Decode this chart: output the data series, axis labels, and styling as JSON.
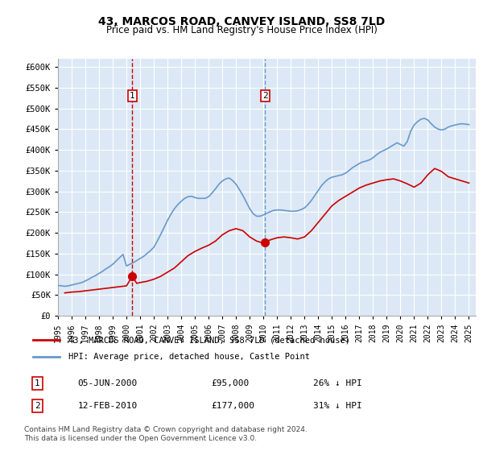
{
  "title": "43, MARCOS ROAD, CANVEY ISLAND, SS8 7LD",
  "subtitle": "Price paid vs. HM Land Registry's House Price Index (HPI)",
  "ylabel_ticks": [
    "£0",
    "£50K",
    "£100K",
    "£150K",
    "£200K",
    "£250K",
    "£300K",
    "£350K",
    "£400K",
    "£450K",
    "£500K",
    "£550K",
    "£600K"
  ],
  "ylim": [
    0,
    620000
  ],
  "xlim_start": 1995.0,
  "xlim_end": 2025.5,
  "marker1_date": 2000.43,
  "marker1_label": "1",
  "marker1_price": 95000,
  "marker1_text": "05-JUN-2000    £95,000    26% ↓ HPI",
  "marker2_date": 2010.12,
  "marker2_label": "2",
  "marker2_price": 177000,
  "marker2_text": "12-FEB-2010    £177,000    31% ↓ HPI",
  "line1_color": "#cc0000",
  "line2_color": "#6699cc",
  "marker_color": "#cc0000",
  "hpi_color": "#6699cc",
  "background_color": "#dce8f5",
  "grid_color": "#ffffff",
  "legend_label1": "43, MARCOS ROAD, CANVEY ISLAND, SS8 7LD (detached house)",
  "legend_label2": "HPI: Average price, detached house, Castle Point",
  "footer": "Contains HM Land Registry data © Crown copyright and database right 2024.\nThis data is licensed under the Open Government Licence v3.0.",
  "hpi_x": [
    1995.0,
    1995.25,
    1995.5,
    1995.75,
    1996.0,
    1996.25,
    1996.5,
    1996.75,
    1997.0,
    1997.25,
    1997.5,
    1997.75,
    1998.0,
    1998.25,
    1998.5,
    1998.75,
    1999.0,
    1999.25,
    1999.5,
    1999.75,
    2000.0,
    2000.25,
    2000.5,
    2000.75,
    2001.0,
    2001.25,
    2001.5,
    2001.75,
    2002.0,
    2002.25,
    2002.5,
    2002.75,
    2003.0,
    2003.25,
    2003.5,
    2003.75,
    2004.0,
    2004.25,
    2004.5,
    2004.75,
    2005.0,
    2005.25,
    2005.5,
    2005.75,
    2006.0,
    2006.25,
    2006.5,
    2006.75,
    2007.0,
    2007.25,
    2007.5,
    2007.75,
    2008.0,
    2008.25,
    2008.5,
    2008.75,
    2009.0,
    2009.25,
    2009.5,
    2009.75,
    2010.0,
    2010.25,
    2010.5,
    2010.75,
    2011.0,
    2011.25,
    2011.5,
    2011.75,
    2012.0,
    2012.25,
    2012.5,
    2012.75,
    2013.0,
    2013.25,
    2013.5,
    2013.75,
    2014.0,
    2014.25,
    2014.5,
    2014.75,
    2015.0,
    2015.25,
    2015.5,
    2015.75,
    2016.0,
    2016.25,
    2016.5,
    2016.75,
    2017.0,
    2017.25,
    2017.5,
    2017.75,
    2018.0,
    2018.25,
    2018.5,
    2018.75,
    2019.0,
    2019.25,
    2019.5,
    2019.75,
    2020.0,
    2020.25,
    2020.5,
    2020.75,
    2021.0,
    2021.25,
    2021.5,
    2021.75,
    2022.0,
    2022.25,
    2022.5,
    2022.75,
    2023.0,
    2023.25,
    2023.5,
    2023.75,
    2024.0,
    2024.25,
    2024.5,
    2024.75,
    2025.0
  ],
  "hpi_y": [
    73000,
    72000,
    71000,
    72000,
    74000,
    76000,
    78000,
    80000,
    84000,
    88000,
    93000,
    97000,
    102000,
    107000,
    113000,
    118000,
    124000,
    132000,
    140000,
    148000,
    120000,
    124000,
    128000,
    133000,
    138000,
    143000,
    150000,
    157000,
    165000,
    180000,
    196000,
    213000,
    230000,
    245000,
    258000,
    268000,
    276000,
    283000,
    287000,
    288000,
    285000,
    283000,
    283000,
    283000,
    287000,
    296000,
    306000,
    317000,
    325000,
    330000,
    332000,
    326000,
    317000,
    304000,
    290000,
    274000,
    258000,
    246000,
    240000,
    240000,
    243000,
    247000,
    251000,
    254000,
    255000,
    255000,
    254000,
    253000,
    252000,
    252000,
    253000,
    256000,
    260000,
    268000,
    278000,
    290000,
    302000,
    314000,
    323000,
    330000,
    334000,
    336000,
    338000,
    340000,
    344000,
    350000,
    357000,
    362000,
    367000,
    371000,
    373000,
    376000,
    381000,
    388000,
    394000,
    398000,
    402000,
    407000,
    412000,
    417000,
    413000,
    409000,
    420000,
    445000,
    460000,
    468000,
    474000,
    476000,
    472000,
    463000,
    455000,
    450000,
    448000,
    450000,
    455000,
    458000,
    460000,
    462000,
    463000,
    462000,
    461000
  ],
  "price_x": [
    1995.5,
    1996.0,
    1996.5,
    1997.0,
    1997.5,
    1998.0,
    1998.5,
    1999.0,
    1999.5,
    2000.0,
    2000.43,
    2000.75,
    2001.0,
    2001.5,
    2002.0,
    2002.5,
    2003.0,
    2003.5,
    2004.0,
    2004.5,
    2005.0,
    2005.5,
    2006.0,
    2006.5,
    2007.0,
    2007.5,
    2008.0,
    2008.5,
    2009.0,
    2009.5,
    2010.0,
    2010.12,
    2010.5,
    2011.0,
    2011.5,
    2012.0,
    2012.5,
    2013.0,
    2013.5,
    2014.0,
    2014.5,
    2015.0,
    2015.5,
    2016.0,
    2016.5,
    2017.0,
    2017.5,
    2018.0,
    2018.5,
    2019.0,
    2019.5,
    2020.0,
    2020.5,
    2021.0,
    2021.5,
    2022.0,
    2022.5,
    2023.0,
    2023.5,
    2024.0,
    2024.5,
    2025.0
  ],
  "price_y": [
    55000,
    57000,
    58000,
    60000,
    62000,
    64000,
    66000,
    68000,
    70000,
    72000,
    95000,
    78000,
    80000,
    83000,
    88000,
    95000,
    105000,
    115000,
    130000,
    145000,
    155000,
    163000,
    170000,
    180000,
    195000,
    205000,
    210000,
    205000,
    190000,
    180000,
    175000,
    177000,
    183000,
    188000,
    190000,
    188000,
    185000,
    190000,
    205000,
    225000,
    245000,
    265000,
    278000,
    288000,
    298000,
    308000,
    315000,
    320000,
    325000,
    328000,
    330000,
    325000,
    318000,
    310000,
    320000,
    340000,
    355000,
    348000,
    335000,
    330000,
    325000,
    320000
  ]
}
